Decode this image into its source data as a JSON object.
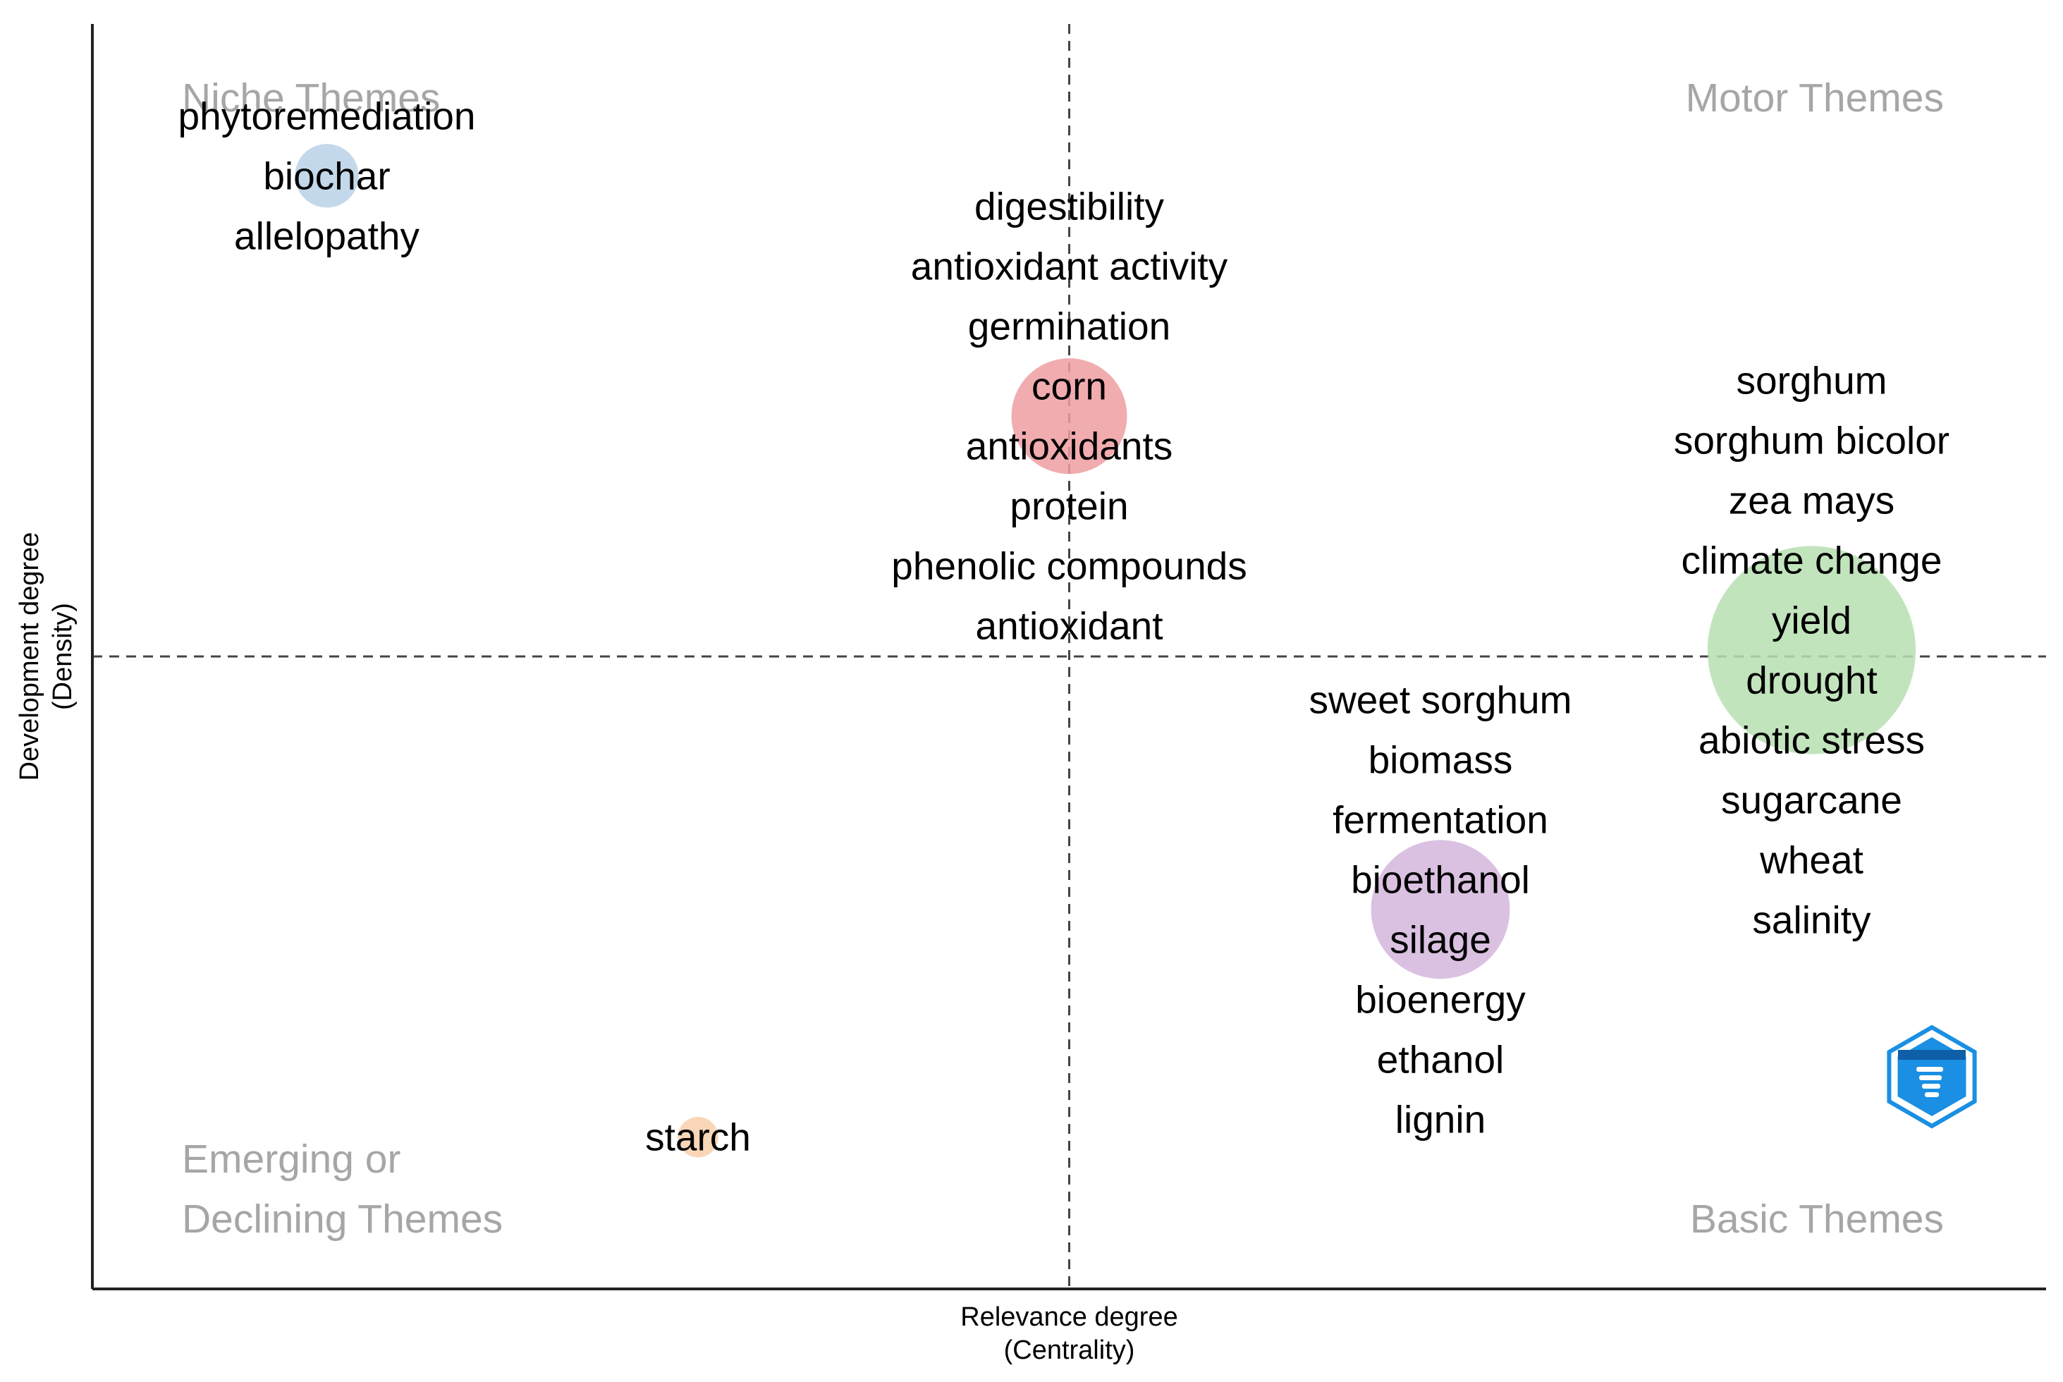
{
  "chart_data": {
    "type": "scatter",
    "xlabel": [
      "Relevance degree",
      "(Centrality)"
    ],
    "ylabel": [
      "Development degree",
      "(Density)"
    ],
    "grid": false,
    "reference_lines": {
      "vertical": "dashed",
      "horizontal": "dashed"
    },
    "quadrant_labels": {
      "top_left": [
        "Niche Themes"
      ],
      "top_right": [
        "Motor Themes"
      ],
      "bottom_left": [
        "Emerging or",
        "Declining Themes"
      ],
      "bottom_right": [
        "Basic Themes"
      ]
    },
    "x_range": [
      0,
      100
    ],
    "y_range": [
      0,
      100
    ],
    "clusters": [
      {
        "color": "#b9d1e6",
        "x": 12.0,
        "y": 88.0,
        "size": 0.55,
        "keywords": [
          "phytoremediation",
          "biochar",
          "allelopathy"
        ]
      },
      {
        "color": "#ee9ea2",
        "x": 50.0,
        "y": 69.0,
        "size": 1.0,
        "keywords": [
          "digestibility",
          "antioxidant activity",
          "germination",
          "corn",
          "antioxidants",
          "protein",
          "phenolic compounds",
          "antioxidant"
        ]
      },
      {
        "color": "#b7dfb1",
        "x": 88.0,
        "y": 50.5,
        "size": 1.8,
        "keywords": [
          "sorghum",
          "sorghum bicolor",
          "zea mays",
          "climate change",
          "yield",
          "drought",
          "abiotic stress",
          "sugarcane",
          "wheat",
          "salinity"
        ]
      },
      {
        "color": "#d3b6dc",
        "x": 69.0,
        "y": 30.0,
        "size": 1.2,
        "keywords": [
          "sweet sorghum",
          "biomass",
          "fermentation",
          "bioethanol",
          "silage",
          "bioenergy",
          "ethanol",
          "lignin"
        ]
      },
      {
        "color": "#f8cfab",
        "x": 31.0,
        "y": 12.0,
        "size": 0.35,
        "keywords": [
          "starch"
        ]
      }
    ],
    "watermark": "bibliometrix-logo"
  }
}
